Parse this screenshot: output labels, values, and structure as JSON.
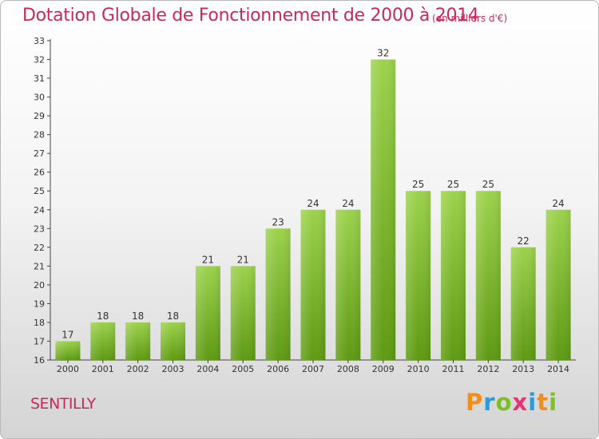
{
  "title": "Dotation Globale de Fonctionnement de 2000 à 2014",
  "unit_note": "(en milliers d'€)",
  "commune": "SENTILLY",
  "logo_text": "Proxiti",
  "colors": {
    "accent": "#c8285a",
    "bar_top": "#9cd24c",
    "bar_bottom": "#5e9a12"
  },
  "chart_data": {
    "type": "bar",
    "title": "Dotation Globale de Fonctionnement de 2000 à 2014",
    "xlabel": "",
    "ylabel": "",
    "categories": [
      "2000",
      "2001",
      "2002",
      "2003",
      "2004",
      "2005",
      "2006",
      "2007",
      "2008",
      "2009",
      "2010",
      "2011",
      "2012",
      "2013",
      "2014"
    ],
    "values": [
      17,
      18,
      18,
      18,
      21,
      21,
      23,
      24,
      24,
      32,
      25,
      25,
      25,
      22,
      24
    ],
    "ylim": [
      16,
      33
    ],
    "yticks": [
      16,
      17,
      18,
      19,
      20,
      21,
      22,
      23,
      24,
      25,
      26,
      27,
      28,
      29,
      30,
      31,
      32,
      33
    ],
    "grid": false,
    "legend": "none"
  }
}
